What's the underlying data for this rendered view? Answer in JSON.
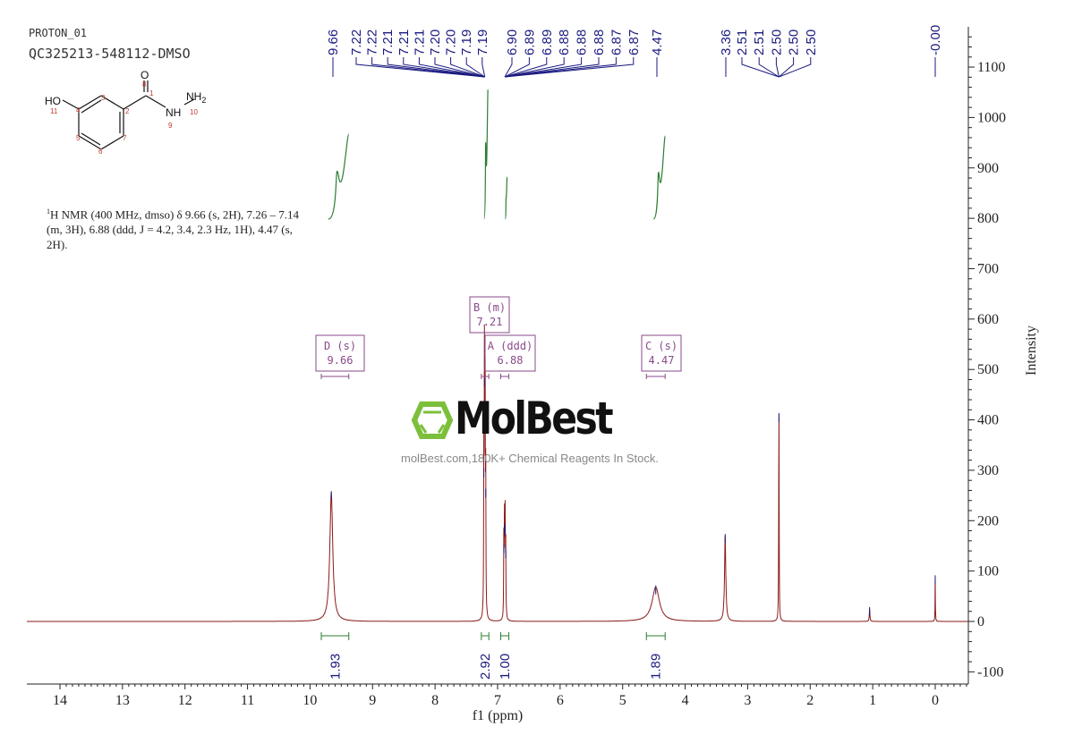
{
  "header": {
    "experiment": "PROTON_01",
    "sample": "QC325213-548112-DMSO"
  },
  "structure": {
    "atoms": {
      "O": "O",
      "HO": "HO",
      "NH": "NH",
      "NH2": "NH",
      "sub2": "2"
    },
    "numbers": [
      "1",
      "2",
      "3",
      "4",
      "5",
      "6",
      "7",
      "8",
      "9",
      "10",
      "11"
    ]
  },
  "description": {
    "sup": "1",
    "text": "H NMR (400 MHz, dmso) δ 9.66 (s, 2H), 7.26 – 7.14 (m, 3H), 6.88 (ddd, J = 4.2, 3.4, 2.3 Hz, 1H), 4.47 (s, 2H)."
  },
  "watermark": {
    "logo": "MolBest",
    "url": "molBest.com,180K+ Chemical Reagents In Stock."
  },
  "colors": {
    "spectrum": "#8b1a1a",
    "labels": "#1a1a80",
    "integral": "#2e7d32",
    "multiplet_box": "#8a4a8a",
    "logo_green": "#7cbf3a"
  },
  "chart_data": {
    "type": "line",
    "title": "",
    "xlabel": "f1 (ppm)",
    "ylabel": "Intensity",
    "xlim": [
      14.5,
      -0.5
    ],
    "ylim": [
      -130,
      1180
    ],
    "x_reversed": true,
    "grid": false,
    "xticks": [
      "14",
      "13",
      "12",
      "11",
      "10",
      "9",
      "8",
      "7",
      "6",
      "5",
      "4",
      "3",
      "2",
      "1",
      "0"
    ],
    "yticks": [
      "-100",
      "0",
      "100",
      "200",
      "300",
      "400",
      "500",
      "600",
      "700",
      "800",
      "900",
      "1000",
      "1100"
    ],
    "peaks": [
      {
        "ppm": 9.66,
        "intensity": 255,
        "width": 0.028
      },
      {
        "ppm": 7.22,
        "intensity": 300,
        "width": 0.004
      },
      {
        "ppm": 7.21,
        "intensity": 480,
        "width": 0.004
      },
      {
        "ppm": 7.2,
        "intensity": 420,
        "width": 0.004
      },
      {
        "ppm": 7.19,
        "intensity": 260,
        "width": 0.004
      },
      {
        "ppm": 6.9,
        "intensity": 150,
        "width": 0.004
      },
      {
        "ppm": 6.89,
        "intensity": 185,
        "width": 0.004
      },
      {
        "ppm": 6.88,
        "intensity": 190,
        "width": 0.004
      },
      {
        "ppm": 6.87,
        "intensity": 140,
        "width": 0.004
      },
      {
        "ppm": 4.47,
        "intensity": 68,
        "width": 0.07
      },
      {
        "ppm": 3.36,
        "intensity": 170,
        "width": 0.012
      },
      {
        "ppm": 2.5,
        "intensity": 410,
        "width": 0.004
      },
      {
        "ppm": 1.05,
        "intensity": 25,
        "width": 0.006
      },
      {
        "ppm": 0.0,
        "intensity": 88,
        "width": 0.003
      }
    ],
    "peak_label_groups": [
      {
        "labels": [
          "9.66"
        ],
        "target_ppm": 9.66
      },
      {
        "labels": [
          "7.22",
          "7.22",
          "7.21",
          "7.21",
          "7.21",
          "7.20",
          "7.20",
          "7.19",
          "7.19"
        ],
        "target_ppm": 7.205
      },
      {
        "labels": [
          "6.90",
          "6.89",
          "6.89",
          "6.88",
          "6.88",
          "6.88",
          "6.87",
          "6.87"
        ],
        "target_ppm": 6.885
      },
      {
        "labels": [
          "4.47"
        ],
        "target_ppm": 4.47
      },
      {
        "labels": [
          "3.36"
        ],
        "target_ppm": 3.36
      },
      {
        "labels": [
          "2.51",
          "2.51",
          "2.50",
          "2.50",
          "2.50"
        ],
        "target_ppm": 2.5
      },
      {
        "labels": [
          "-0.00"
        ],
        "target_ppm": 0.0
      }
    ],
    "multiplets": [
      {
        "label": "D (s)",
        "shift": "9.66",
        "range": [
          9.82,
          9.38
        ]
      },
      {
        "label": "B (m)",
        "shift": "7.21",
        "range": [
          7.26,
          7.14
        ]
      },
      {
        "label": "A (ddd)",
        "shift": "6.88",
        "range": [
          6.95,
          6.82
        ]
      },
      {
        "label": "C (s)",
        "shift": "4.47",
        "range": [
          4.62,
          4.32
        ]
      }
    ],
    "integrals": [
      {
        "value": "1.93",
        "range": [
          9.82,
          9.38
        ]
      },
      {
        "value": "2.92",
        "range": [
          7.26,
          7.14
        ]
      },
      {
        "value": "1.00",
        "range": [
          6.95,
          6.82
        ]
      },
      {
        "value": "1.89",
        "range": [
          4.62,
          4.32
        ]
      }
    ]
  }
}
